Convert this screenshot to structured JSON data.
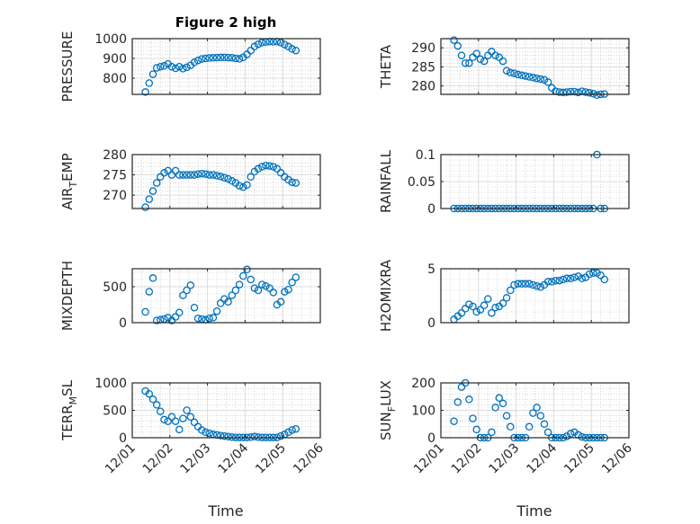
{
  "chart_data": {
    "type": "scatter",
    "title": "Figure 2 high",
    "xlabel": "Time",
    "xlim": [
      0,
      5
    ],
    "xticks": [
      0,
      1,
      2,
      3,
      4,
      5
    ],
    "xtick_labels": [
      "12/01",
      "12/02",
      "12/03",
      "12/04",
      "12/05",
      "12/06"
    ],
    "grid": "on (major + minor)",
    "marker_color": "#0072BD",
    "x_days": [
      0.35,
      0.45,
      0.55,
      0.65,
      0.75,
      0.85,
      0.95,
      1.05,
      1.15,
      1.25,
      1.35,
      1.45,
      1.55,
      1.65,
      1.75,
      1.85,
      1.95,
      2.05,
      2.15,
      2.25,
      2.35,
      2.45,
      2.55,
      2.65,
      2.75,
      2.85,
      2.95,
      3.05,
      3.15,
      3.25,
      3.35,
      3.45,
      3.55,
      3.65,
      3.75,
      3.85,
      3.95,
      4.05,
      4.15,
      4.25,
      4.35
    ],
    "subplots": [
      {
        "ylabel": "PRESSURE",
        "ylim": [
          718,
          1000
        ],
        "yticks": [
          800,
          900,
          1000
        ],
        "values": [
          730,
          775,
          820,
          852,
          858,
          862,
          872,
          858,
          850,
          858,
          848,
          855,
          865,
          880,
          890,
          897,
          900,
          902,
          903,
          904,
          905,
          905,
          904,
          903,
          900,
          898,
          905,
          920,
          940,
          960,
          972,
          980,
          983,
          985,
          984,
          985,
          980,
          970,
          960,
          948,
          940
        ]
      },
      {
        "ylabel": "THETA",
        "ylim": [
          277.8,
          292.4
        ],
        "yticks": [
          280,
          285,
          290
        ],
        "values": [
          292,
          290.5,
          288,
          286,
          286,
          287.5,
          288.5,
          287,
          286.5,
          288,
          289,
          288,
          287.5,
          286.5,
          284,
          283.5,
          283.3,
          283,
          282.8,
          282.6,
          282.4,
          282.2,
          282,
          281.8,
          281.6,
          281,
          279.5,
          278.6,
          278.4,
          278.3,
          278.4,
          278.5,
          278.5,
          278.3,
          278.6,
          278.4,
          278.2,
          278,
          277.6,
          277.8,
          277.9
        ]
      },
      {
        "ylabel": "AIR_TEMP",
        "ylim": [
          266.7,
          280
        ],
        "yticks": [
          270,
          275,
          280
        ],
        "values": [
          267,
          269,
          271,
          273,
          274.5,
          275.5,
          276,
          275,
          276,
          275,
          275,
          275,
          275,
          275,
          275.2,
          275.3,
          275.2,
          275,
          275,
          274.8,
          274.6,
          274.3,
          274,
          273.5,
          273,
          272.3,
          272,
          272.5,
          274.5,
          275.8,
          276.5,
          277,
          277.3,
          277.2,
          277,
          276.5,
          275.5,
          274.5,
          273.8,
          273.2,
          273
        ]
      },
      {
        "ylabel": "RAINFALL",
        "ylim": [
          0,
          0.1
        ],
        "yticks": [
          0,
          0.05,
          0.1
        ],
        "values": [
          0,
          0,
          0,
          0,
          0,
          0,
          0,
          0,
          0,
          0,
          0,
          0,
          0,
          0,
          0,
          0,
          0,
          0,
          0,
          0,
          0,
          0,
          0,
          0,
          0,
          0,
          0,
          0,
          0,
          0,
          0,
          0,
          0,
          0,
          0,
          0,
          0,
          0,
          0.1,
          0,
          0
        ]
      },
      {
        "ylabel": "MIXDEPTH",
        "ylim": [
          0,
          750
        ],
        "yticks": [
          0,
          500
        ],
        "values": [
          150,
          430,
          620,
          30,
          40,
          50,
          70,
          30,
          80,
          140,
          380,
          450,
          520,
          210,
          60,
          50,
          40,
          60,
          70,
          160,
          270,
          330,
          290,
          380,
          450,
          530,
          650,
          740,
          600,
          480,
          450,
          530,
          510,
          480,
          420,
          250,
          290,
          430,
          460,
          560,
          630
        ]
      },
      {
        "ylabel": "H2OMIXRA",
        "ylim": [
          0,
          5
        ],
        "yticks": [
          0,
          5
        ],
        "values": [
          0.3,
          0.6,
          0.9,
          1.3,
          1.7,
          1.5,
          1.0,
          1.2,
          1.6,
          2.2,
          0.9,
          1.4,
          1.5,
          1.8,
          2.3,
          3.0,
          3.5,
          3.6,
          3.6,
          3.6,
          3.6,
          3.5,
          3.4,
          3.3,
          3.5,
          3.8,
          3.8,
          3.9,
          3.9,
          4.0,
          4.1,
          4.1,
          4.2,
          4.3,
          4.1,
          4.2,
          4.5,
          4.6,
          4.6,
          4.4,
          4.0
        ]
      },
      {
        "ylabel": "TERR_MSL",
        "ylim": [
          0,
          1000
        ],
        "yticks": [
          0,
          500,
          1000
        ],
        "values": [
          850,
          800,
          700,
          600,
          480,
          330,
          300,
          380,
          300,
          150,
          350,
          500,
          380,
          280,
          200,
          140,
          100,
          80,
          60,
          50,
          40,
          30,
          20,
          10,
          5,
          5,
          5,
          5,
          10,
          20,
          10,
          5,
          5,
          5,
          5,
          5,
          30,
          60,
          100,
          140,
          160
        ]
      },
      {
        "ylabel": "SUN_FLUX",
        "ylim": [
          0,
          200
        ],
        "yticks": [
          0,
          100,
          200
        ],
        "values": [
          60,
          130,
          185,
          200,
          140,
          70,
          30,
          0,
          0,
          0,
          20,
          110,
          145,
          125,
          80,
          40,
          0,
          0,
          0,
          0,
          40,
          90,
          110,
          80,
          50,
          20,
          0,
          0,
          0,
          0,
          5,
          15,
          20,
          10,
          3,
          0,
          0,
          0,
          0,
          0,
          0
        ]
      }
    ]
  }
}
